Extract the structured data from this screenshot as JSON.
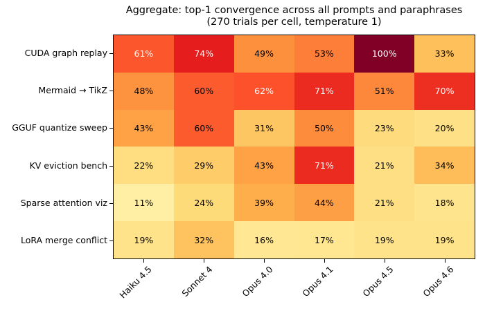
{
  "chart_data": {
    "type": "heatmap",
    "title": "Aggregate: top-1 convergence across all prompts and paraphrases",
    "subtitle": "(270 trials per cell, temperature 1)",
    "columns": [
      "Haiku 4.5",
      "Sonnet 4",
      "Opus 4.0",
      "Opus 4.1",
      "Opus 4.5",
      "Opus 4.6"
    ],
    "rows": [
      "CUDA graph replay",
      "Mermaid → TikZ",
      "GGUF quantize sweep",
      "KV eviction bench",
      "Sparse attention viz",
      "LoRA merge conflict"
    ],
    "values_percent": [
      [
        61,
        74,
        49,
        53,
        100,
        33
      ],
      [
        48,
        60,
        62,
        71,
        51,
        70
      ],
      [
        43,
        60,
        31,
        50,
        23,
        20
      ],
      [
        22,
        29,
        43,
        71,
        21,
        34
      ],
      [
        11,
        24,
        39,
        44,
        21,
        18
      ],
      [
        19,
        32,
        16,
        17,
        19,
        19
      ]
    ],
    "cell_label_suffix": "%",
    "vmin": 0,
    "vmax": 100,
    "colormap": {
      "name": "YlOrRd",
      "stops": [
        {
          "t": 0.0,
          "hex": "#ffffcc"
        },
        {
          "t": 0.125,
          "hex": "#ffeda0"
        },
        {
          "t": 0.25,
          "hex": "#fed976"
        },
        {
          "t": 0.375,
          "hex": "#feb24c"
        },
        {
          "t": 0.5,
          "hex": "#fd8d3c"
        },
        {
          "t": 0.625,
          "hex": "#fc4e2a"
        },
        {
          "t": 0.75,
          "hex": "#e31a1c"
        },
        {
          "t": 0.875,
          "hex": "#bd0026"
        },
        {
          "t": 1.0,
          "hex": "#800026"
        }
      ]
    },
    "text_colors": {
      "light": "#ffffff",
      "dark": "#000000",
      "white_text_threshold": 60
    },
    "axis_color": "#000000",
    "background_color": "#ffffff",
    "legend": "none",
    "grid": "off"
  }
}
